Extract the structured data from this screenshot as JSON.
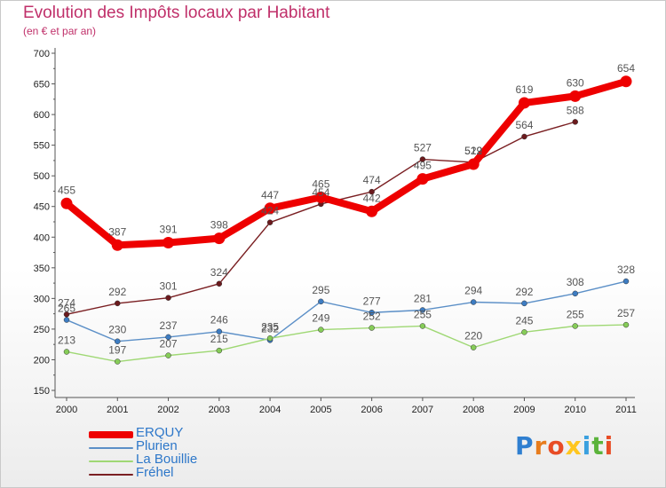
{
  "title": "Evolution des Impôts locaux par Habitant",
  "subtitle": "(en € et par an)",
  "logo": {
    "letters": [
      "P",
      "r",
      "o",
      "x",
      "i",
      "t",
      "i"
    ],
    "colors": [
      "#2f7fd0",
      "#e77c1d",
      "#e84c25",
      "#ffc61e",
      "#3aa0df",
      "#5bb33b",
      "#e84c25"
    ]
  },
  "chart_data": {
    "type": "line",
    "title": "Evolution des Impôts locaux par Habitant",
    "subtitle": "(en € et par an)",
    "xlabel": "",
    "ylabel": "",
    "ylim": [
      150,
      700
    ],
    "yticks": [
      150,
      200,
      250,
      300,
      350,
      400,
      450,
      500,
      550,
      600,
      650,
      700
    ],
    "categories": [
      "2000",
      "2001",
      "2002",
      "2003",
      "2004",
      "2005",
      "2006",
      "2007",
      "2008",
      "2009",
      "2010",
      "2011"
    ],
    "legend_position": "bottom-left",
    "series": [
      {
        "name": "Fréhel",
        "color": "#7a1f22",
        "marker": "#6b1a1d",
        "width": 1.4,
        "values": [
          274,
          292,
          301,
          324,
          424,
          454,
          474,
          527,
          522,
          564,
          588,
          null
        ],
        "labels": [
          "274",
          "292",
          "301",
          "324",
          "424",
          "454",
          "474",
          "527",
          "522",
          "564",
          "588",
          ""
        ]
      },
      {
        "name": "Plurien",
        "color": "#5b8fc7",
        "marker": "#3d7cc2",
        "width": 1.4,
        "values": [
          265,
          230,
          237,
          246,
          232,
          295,
          277,
          281,
          294,
          292,
          308,
          328
        ],
        "labels": [
          "265",
          "230",
          "237",
          "246",
          "232",
          "295",
          "277",
          "281",
          "294",
          "292",
          "308",
          "328"
        ]
      },
      {
        "name": "La Bouillie",
        "color": "#9fd874",
        "marker": "#86cc58",
        "width": 1.4,
        "values": [
          213,
          197,
          207,
          215,
          235,
          249,
          252,
          255,
          220,
          245,
          255,
          257
        ],
        "labels": [
          "213",
          "197",
          "207",
          "215",
          "235",
          "249",
          "252",
          "255",
          "220",
          "245",
          "255",
          "257"
        ]
      },
      {
        "name": "ERQUY",
        "color": "#ee0000",
        "marker": "#ee0000",
        "width": 8,
        "values": [
          455,
          387,
          391,
          398,
          447,
          465,
          442,
          495,
          519,
          619,
          630,
          654
        ],
        "labels": [
          "455",
          "387",
          "391",
          "398",
          "447",
          "465",
          "442",
          "495",
          "519",
          "619",
          "630",
          "654"
        ]
      }
    ]
  },
  "legend": [
    {
      "label": "ERQUY",
      "color": "#ee0000",
      "thickness": 8
    },
    {
      "label": "Plurien",
      "color": "#5b8fc7",
      "thickness": 2
    },
    {
      "label": "La Bouillie",
      "color": "#9fd874",
      "thickness": 2
    },
    {
      "label": "Fréhel",
      "color": "#7a1f22",
      "thickness": 2
    }
  ]
}
